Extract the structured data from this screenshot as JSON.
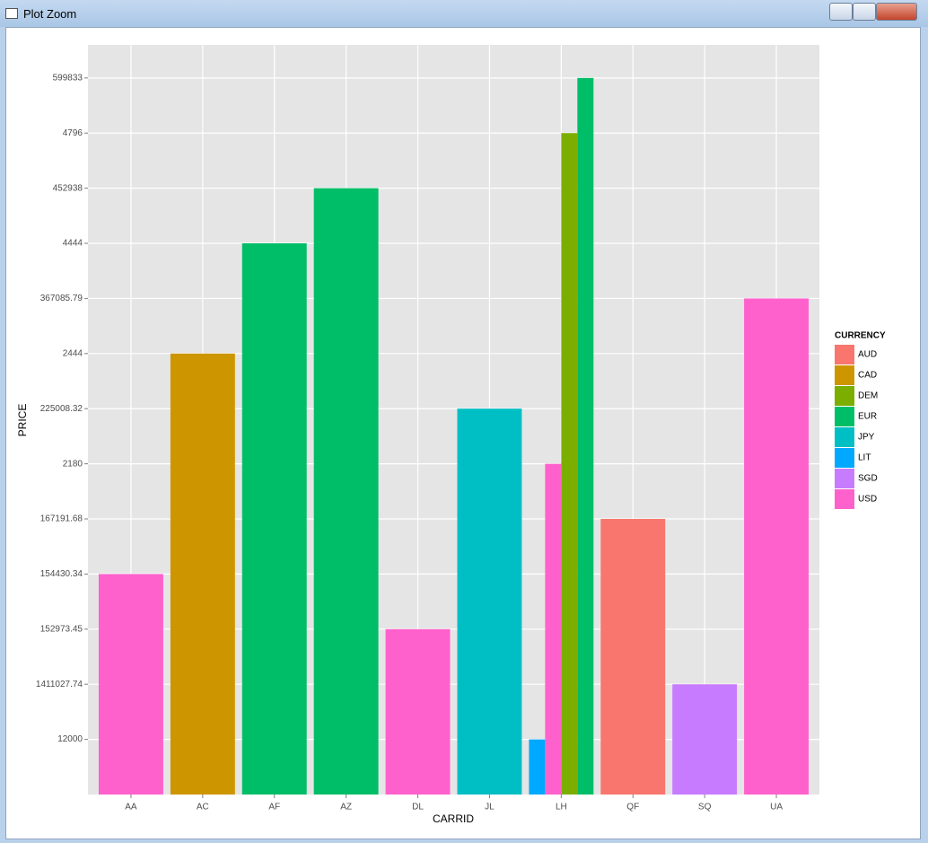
{
  "window": {
    "title": "Plot Zoom"
  },
  "chart_data": {
    "type": "bar",
    "x_label": "CARRID",
    "y_label": "PRICE",
    "legend_title": "CURRENCY",
    "categories": [
      "AA",
      "AC",
      "AF",
      "AZ",
      "DL",
      "JL",
      "LH",
      "QF",
      "SQ",
      "UA"
    ],
    "series": [
      {
        "name": "AUD",
        "color": "#f8766d"
      },
      {
        "name": "CAD",
        "color": "#cd9600"
      },
      {
        "name": "DEM",
        "color": "#7cae00"
      },
      {
        "name": "EUR",
        "color": "#00be67"
      },
      {
        "name": "JPY",
        "color": "#00bfc4"
      },
      {
        "name": "LIT",
        "color": "#00a9ff"
      },
      {
        "name": "SGD",
        "color": "#c77cff"
      },
      {
        "name": "USD",
        "color": "#ff61cc"
      }
    ],
    "bars": [
      {
        "category": 0,
        "series": 7,
        "value": 4
      },
      {
        "category": 1,
        "series": 1,
        "value": 8
      },
      {
        "category": 2,
        "series": 3,
        "value": 10
      },
      {
        "category": 3,
        "series": 3,
        "value": 11
      },
      {
        "category": 4,
        "series": 7,
        "value": 3
      },
      {
        "category": 5,
        "series": 4,
        "value": 7
      },
      {
        "category": 6,
        "series": 5,
        "value": 1
      },
      {
        "category": 6,
        "series": 7,
        "value": 6
      },
      {
        "category": 6,
        "series": 2,
        "value": 12
      },
      {
        "category": 6,
        "series": 3,
        "value": 13
      },
      {
        "category": 7,
        "series": 0,
        "value": 5
      },
      {
        "category": 8,
        "series": 6,
        "value": 2
      },
      {
        "category": 9,
        "series": 7,
        "value": 9
      }
    ],
    "ylim": [
      0,
      13.6
    ],
    "yticks": [
      {
        "value": 1,
        "label": "12000"
      },
      {
        "value": 2,
        "label": "1411027.74"
      },
      {
        "value": 3,
        "label": "152973.45"
      },
      {
        "value": 4,
        "label": "154430.34"
      },
      {
        "value": 5,
        "label": "167191.68"
      },
      {
        "value": 6,
        "label": "2180"
      },
      {
        "value": 7,
        "label": "225008.32"
      },
      {
        "value": 8,
        "label": "2444"
      },
      {
        "value": 9,
        "label": "367085.79"
      },
      {
        "value": 10,
        "label": "4444"
      },
      {
        "value": 11,
        "label": "452938"
      },
      {
        "value": 12,
        "label": "4796"
      },
      {
        "value": 13,
        "label": "599833"
      }
    ],
    "grid": true
  }
}
